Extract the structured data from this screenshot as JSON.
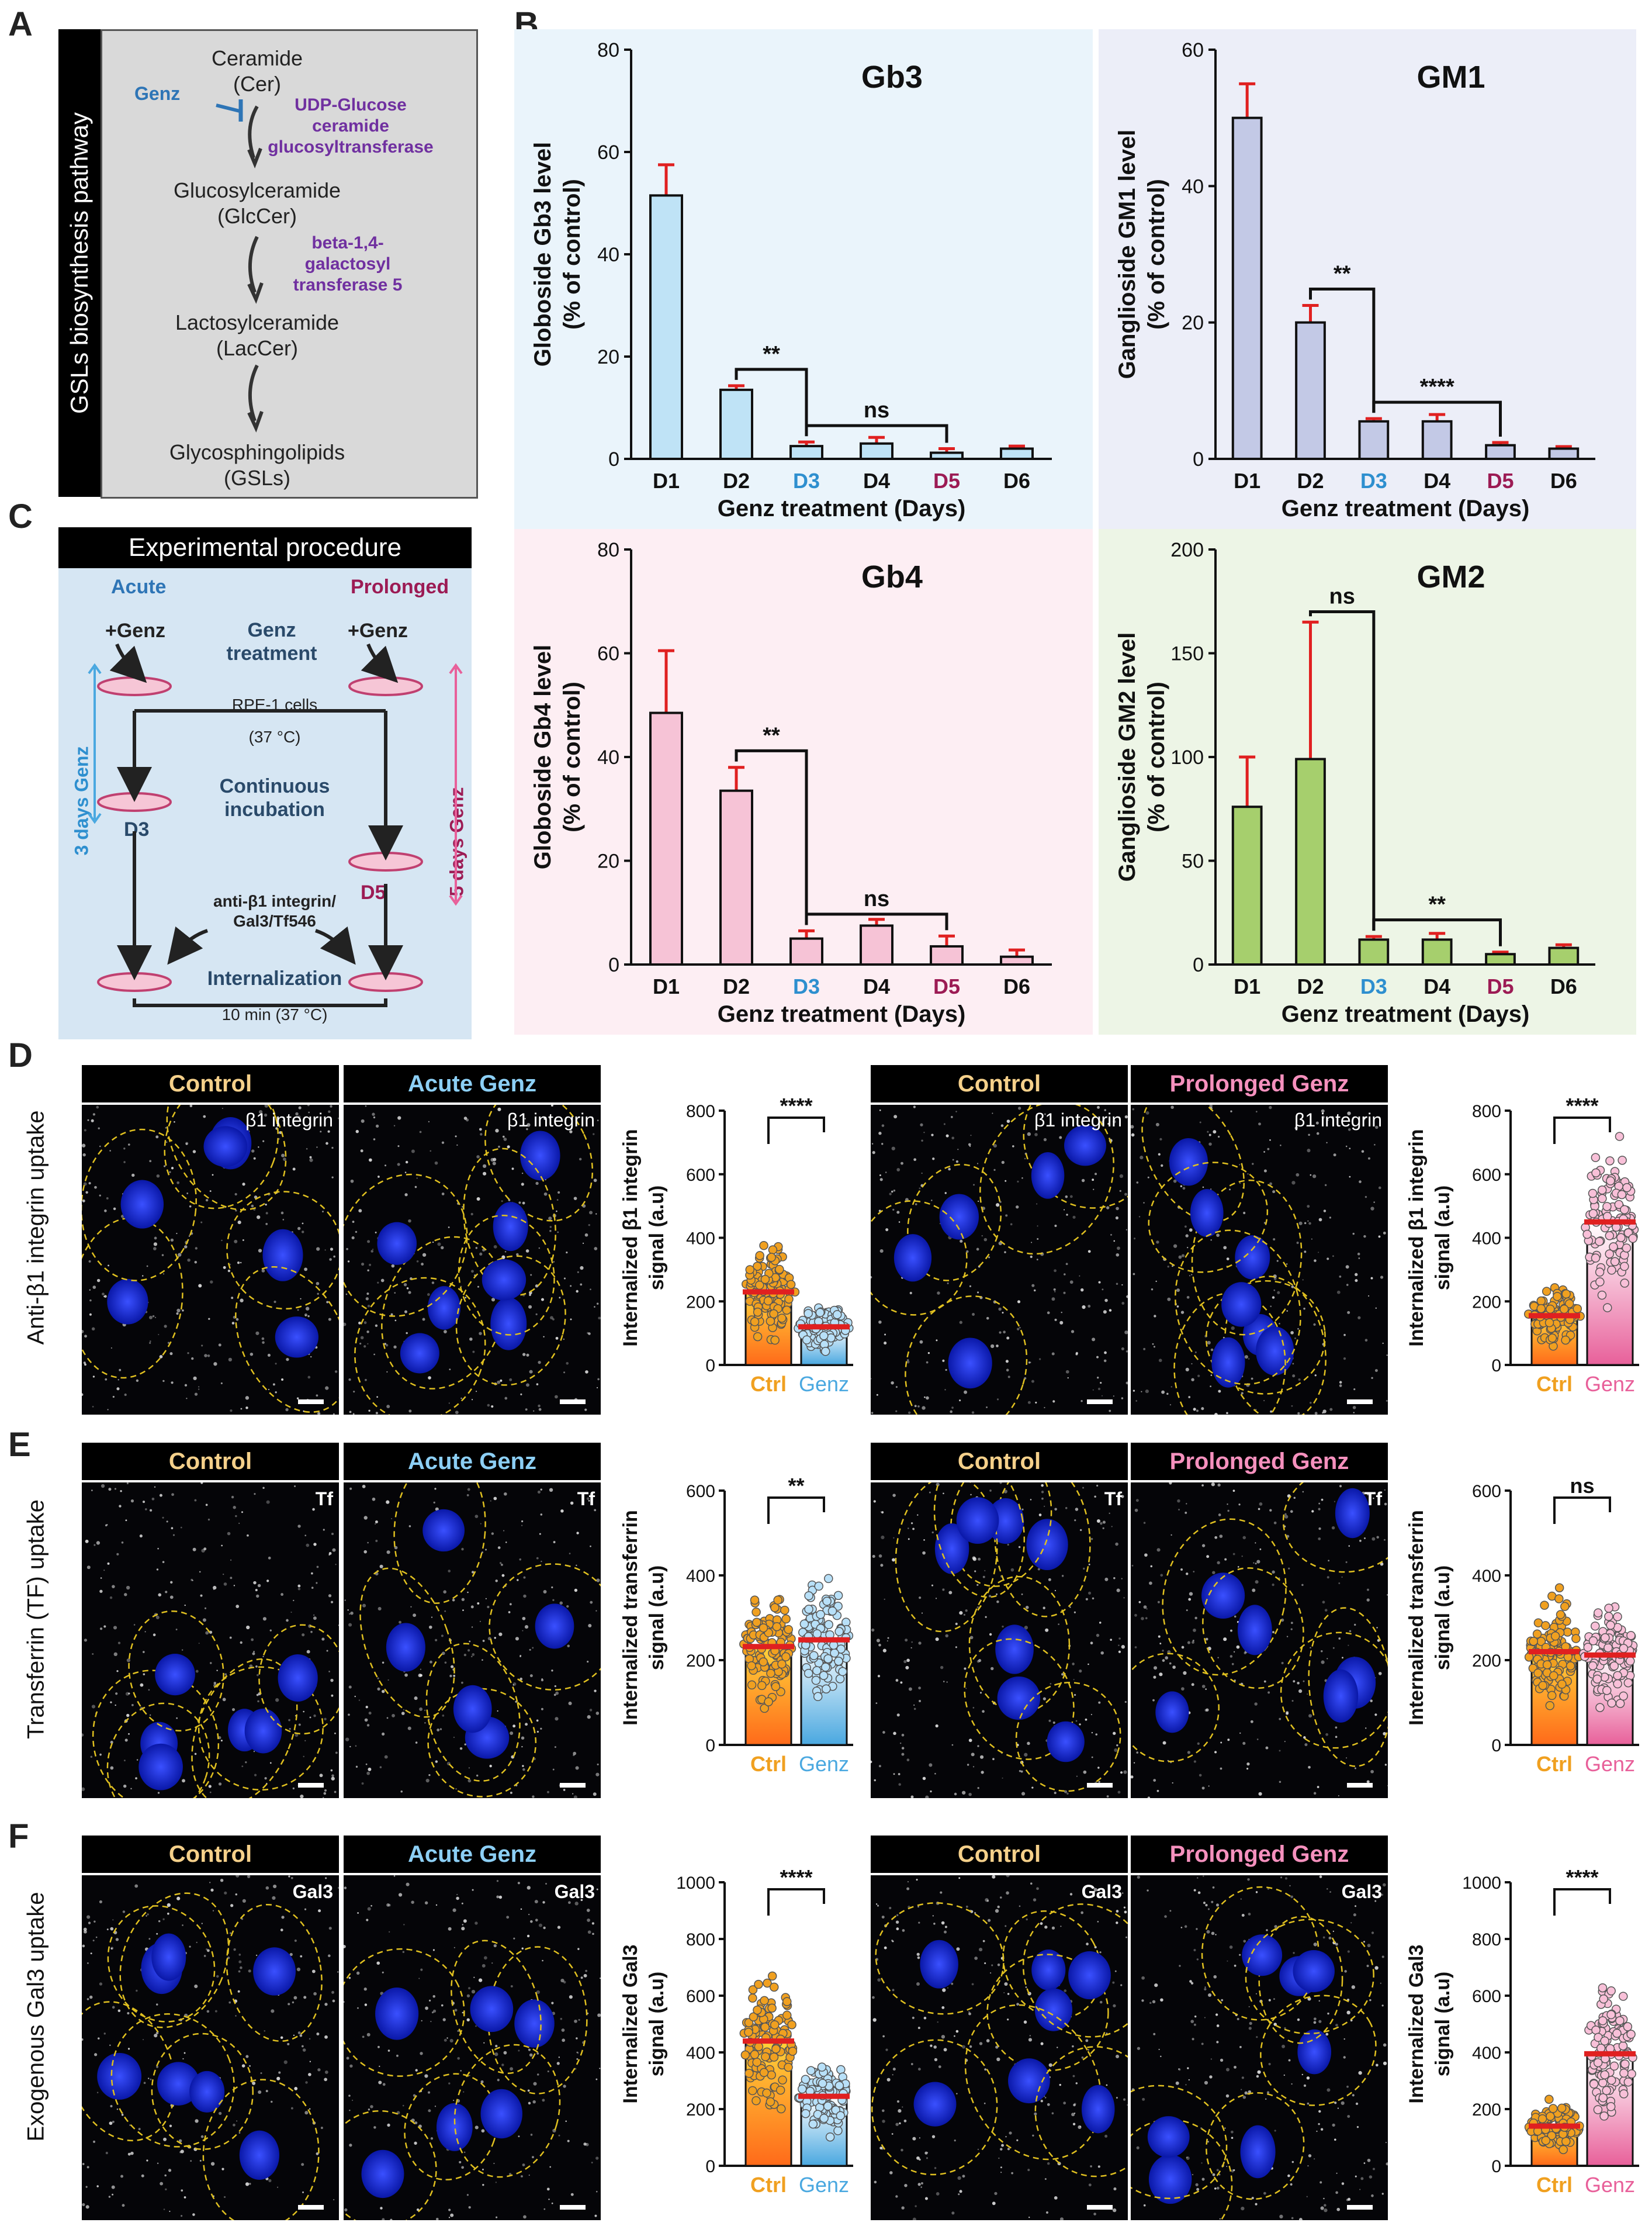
{
  "panel_labels": {
    "A": "A",
    "B": "B",
    "C": "C",
    "D": "D",
    "E": "E",
    "F": "F"
  },
  "pathway": {
    "side_title": "GSLs biosynthesis pathway",
    "step1": "Ceramide",
    "step1_abbr": "(Cer)",
    "inhibitor": "Genz",
    "enzyme1_l1": "UDP-Glucose",
    "enzyme1_l2": "ceramide",
    "enzyme1_l3": "glucosyltransferase",
    "step2": "Glucosylceramide",
    "step2_abbr": "(GlcCer)",
    "enzyme2_l1": "beta-1,4-",
    "enzyme2_l2": "galactosyl",
    "enzyme2_l3": "transferase 5",
    "step3": "Lactosylceramide",
    "step3_abbr": "(LacCer)",
    "step4": "Glycosphingolipids",
    "step4_abbr": "(GSLs)"
  },
  "procedure": {
    "title": "Experimental procedure",
    "acute": "Acute",
    "prolonged": "Prolonged",
    "genz_left": "+Genz",
    "genz_right": "+Genz",
    "genz_treatment_1": "Genz",
    "genz_treatment_2": "treatment",
    "cells": "RPE-1 cells",
    "temp1": "(37 °C)",
    "three_days": "3 days Genz",
    "five_days": "5 days Genz",
    "cont_1": "Continuous",
    "cont_2": "incubation",
    "d3": "D3",
    "d5": "D5",
    "cargo_1": "anti-β1 integrin/",
    "cargo_2": "Gal3/Tf546",
    "internalization": "Internalization",
    "time": "10 min (37 °C)"
  },
  "colors": {
    "gb3": "#bfe3f6",
    "gm1": "#c3c9e6",
    "gb4": "#f6c3d6",
    "gm2": "#a6cf6d",
    "err": "#e02020",
    "ctrl": "#f0a020",
    "genz_acute": "#4aa8e0",
    "genz_prol": "#e8609a",
    "d3": "#2e8fcf",
    "d5": "#9c1b54",
    "pathway": "#7030a0",
    "dash": "#e0c020"
  },
  "chart_data": [
    {
      "id": "gb3",
      "type": "bar",
      "title": "Gb3",
      "ylabel": "Globoside Gb3 level (% of control)",
      "xlabel": "Genz treatment (Days)",
      "categories": [
        "D1",
        "D2",
        "D3",
        "D4",
        "D5",
        "D6"
      ],
      "values": [
        51.5,
        13.5,
        2.5,
        3,
        1.2,
        2
      ],
      "errors": [
        6,
        0.8,
        0.8,
        1.2,
        0.8,
        0.5
      ],
      "ylim": [
        0,
        80
      ],
      "yticks": [
        0,
        20,
        40,
        60,
        80
      ],
      "comparisons": [
        {
          "a": 1,
          "b": 2,
          "label": "**"
        },
        {
          "a": 2,
          "b": 4,
          "label": "ns"
        }
      ]
    },
    {
      "id": "gm1",
      "type": "bar",
      "title": "GM1",
      "ylabel": "Ganglioside GM1 level (% of control)",
      "xlabel": "Genz treatment (Days)",
      "categories": [
        "D1",
        "D2",
        "D3",
        "D4",
        "D5",
        "D6"
      ],
      "values": [
        50,
        20,
        5.5,
        5.5,
        2,
        1.5
      ],
      "errors": [
        5,
        2.5,
        0.4,
        1,
        0.4,
        0.3
      ],
      "ylim": [
        0,
        60
      ],
      "yticks": [
        0,
        20,
        40,
        60
      ],
      "comparisons": [
        {
          "a": 1,
          "b": 2,
          "label": "**"
        },
        {
          "a": 2,
          "b": 4,
          "label": "****"
        }
      ]
    },
    {
      "id": "gb4",
      "type": "bar",
      "title": "Gb4",
      "ylabel": "Globoside Gb4 level (% of control)",
      "xlabel": "Genz treatment (Days)",
      "categories": [
        "D1",
        "D2",
        "D3",
        "D4",
        "D5",
        "D6"
      ],
      "values": [
        48.5,
        33.5,
        5,
        7.5,
        3.5,
        1.5
      ],
      "errors": [
        12,
        4.5,
        1.5,
        1.2,
        2,
        1.3
      ],
      "ylim": [
        0,
        80
      ],
      "yticks": [
        0,
        20,
        40,
        60,
        80
      ],
      "comparisons": [
        {
          "a": 1,
          "b": 2,
          "label": "**"
        },
        {
          "a": 2,
          "b": 4,
          "label": "ns"
        }
      ]
    },
    {
      "id": "gm2",
      "type": "bar",
      "title": "GM2",
      "ylabel": "Ganglioside GM2 level (% of control)",
      "xlabel": "Genz treatment (Days)",
      "categories": [
        "D1",
        "D2",
        "D3",
        "D4",
        "D5",
        "D6"
      ],
      "values": [
        76,
        99,
        12,
        12,
        5,
        8
      ],
      "errors": [
        24,
        66,
        1.5,
        3,
        1,
        1.5
      ],
      "ylim": [
        0,
        200
      ],
      "yticks": [
        0,
        50,
        100,
        150,
        200
      ],
      "comparisons": [
        {
          "a": 1,
          "b": 2,
          "label": "ns"
        },
        {
          "a": 2,
          "b": 4,
          "label": "**"
        }
      ]
    },
    {
      "id": "d1",
      "type": "scatter-bar",
      "ylabel": "Internalized β1 integrin signal (a.u)",
      "categories": [
        "Ctrl",
        "Genz"
      ],
      "values": [
        230,
        120
      ],
      "ylim": [
        0,
        800
      ],
      "yticks": [
        0,
        200,
        400,
        600,
        800
      ],
      "significance": "****",
      "genz_color": "#4aa8e0"
    },
    {
      "id": "d2",
      "type": "scatter-bar",
      "ylabel": "Internalized β1 integrin signal (a.u)",
      "categories": [
        "Ctrl",
        "Genz"
      ],
      "values": [
        155,
        450
      ],
      "ylim": [
        0,
        800
      ],
      "yticks": [
        0,
        200,
        400,
        600,
        800
      ],
      "significance": "****",
      "genz_color": "#e8609a"
    },
    {
      "id": "e1",
      "type": "scatter-bar",
      "ylabel": "Internalized transferrin signal (a.u)",
      "categories": [
        "Ctrl",
        "Genz"
      ],
      "values": [
        232,
        248
      ],
      "ylim": [
        0,
        600
      ],
      "yticks": [
        0,
        200,
        400,
        600
      ],
      "significance": "**",
      "genz_color": "#4aa8e0"
    },
    {
      "id": "e2",
      "type": "scatter-bar",
      "ylabel": "Internalized transferrin signal (a.u)",
      "categories": [
        "Ctrl",
        "Genz"
      ],
      "values": [
        220,
        212
      ],
      "ylim": [
        0,
        600
      ],
      "yticks": [
        0,
        200,
        400,
        600
      ],
      "significance": "ns",
      "genz_color": "#e8609a"
    },
    {
      "id": "f1",
      "type": "scatter-bar",
      "ylabel": "Internalized Gal3 signal (a.u)",
      "categories": [
        "Ctrl",
        "Genz"
      ],
      "values": [
        440,
        245
      ],
      "ylim": [
        0,
        1000
      ],
      "yticks": [
        0,
        200,
        400,
        600,
        800,
        1000
      ],
      "significance": "****",
      "genz_color": "#4aa8e0"
    },
    {
      "id": "f2",
      "type": "scatter-bar",
      "ylabel": "Internalized Gal3 signal (a.u)",
      "categories": [
        "Ctrl",
        "Genz"
      ],
      "values": [
        140,
        395
      ],
      "ylim": [
        0,
        1000
      ],
      "yticks": [
        0,
        200,
        400,
        600,
        800,
        1000
      ],
      "significance": "****",
      "genz_color": "#e8609a"
    }
  ],
  "micrographs": {
    "header_control": "Control",
    "header_acute": "Acute Genz",
    "header_prolonged": "Prolonged Genz",
    "row_d_label": "Anti-β1 integrin uptake",
    "row_e_label": "Transferrin (TF) uptake",
    "row_f_label": "Exogenous Gal3 uptake",
    "tag_d": "β1 integrin",
    "tag_e": "Tf",
    "tag_f": "Gal3"
  }
}
